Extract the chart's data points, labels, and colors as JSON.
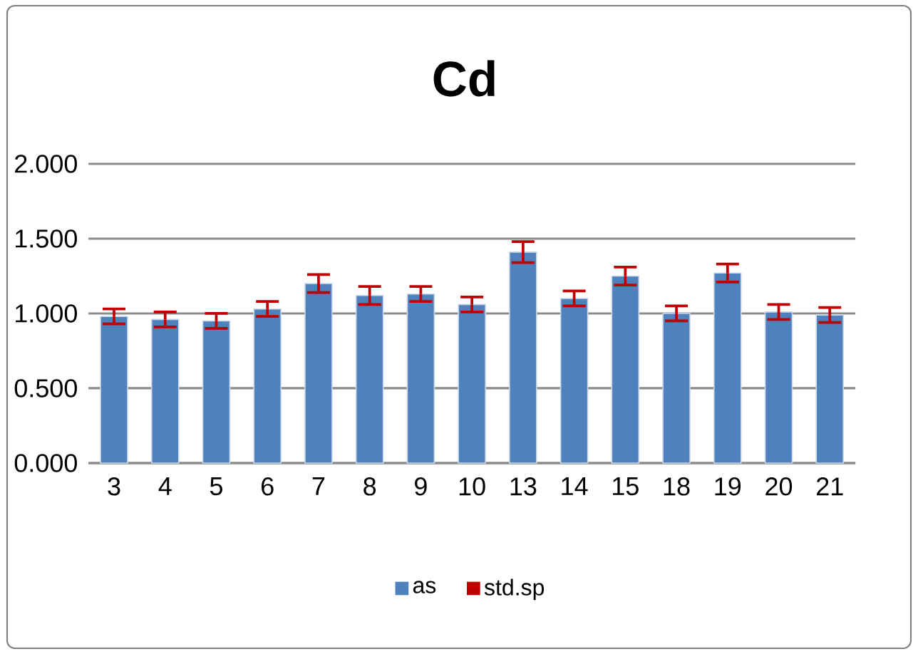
{
  "chart_data": {
    "type": "bar",
    "title": "Cd",
    "categories": [
      "3",
      "4",
      "5",
      "6",
      "7",
      "8",
      "9",
      "10",
      "13",
      "14",
      "15",
      "18",
      "19",
      "20",
      "21"
    ],
    "series": [
      {
        "name": "as",
        "color": "#4f81bd",
        "values": [
          0.98,
          0.96,
          0.95,
          1.03,
          1.2,
          1.12,
          1.13,
          1.06,
          1.41,
          1.1,
          1.25,
          1.0,
          1.27,
          1.01,
          0.99
        ],
        "errors": [
          0.05,
          0.05,
          0.05,
          0.05,
          0.06,
          0.06,
          0.05,
          0.05,
          0.07,
          0.05,
          0.06,
          0.05,
          0.06,
          0.05,
          0.05
        ]
      },
      {
        "name": "std.sp",
        "color": "#c00000",
        "values": [
          null,
          null,
          null,
          null,
          null,
          null,
          null,
          null,
          null,
          null,
          null,
          null,
          null,
          null,
          null
        ]
      }
    ],
    "ylim": [
      0,
      2
    ],
    "yticks": [
      {
        "value": 0,
        "label": "0.000"
      },
      {
        "value": 0.5,
        "label": "0.500"
      },
      {
        "value": 1,
        "label": "1.000"
      },
      {
        "value": 1.5,
        "label": "1.500"
      },
      {
        "value": 2,
        "label": "2.000"
      }
    ],
    "grid": "y",
    "legend": "bottom"
  }
}
